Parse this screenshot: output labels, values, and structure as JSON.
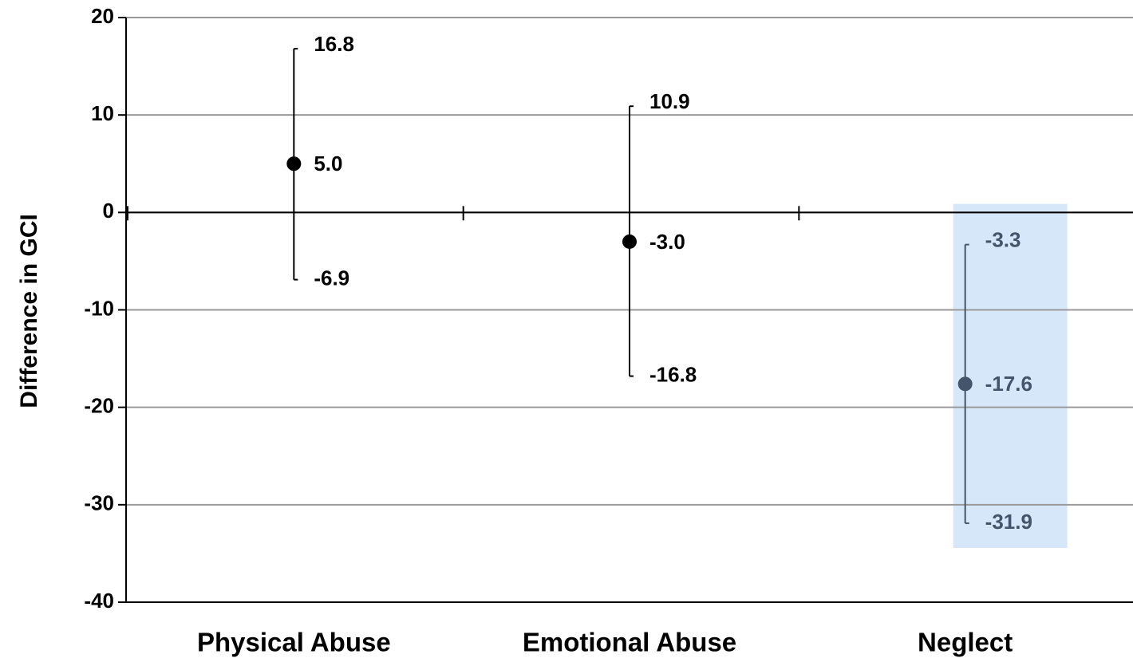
{
  "chart_data": {
    "type": "errorbar",
    "y_label": "Difference in GCI",
    "categories": [
      "Physical Abuse",
      "Emotional Abuse",
      "Neglect"
    ],
    "values": [
      5.0,
      -3.0,
      -17.6
    ],
    "value_labels": [
      "5.0",
      "-3.0",
      "-17.6"
    ],
    "upper": [
      16.8,
      10.9,
      -3.3
    ],
    "lower": [
      -6.9,
      -16.8,
      -31.9
    ],
    "colors": [
      "#000000",
      "#000000",
      "#44546a"
    ],
    "highlight": [
      false,
      false,
      true
    ],
    "highlight_color": "#d6e7fa",
    "ylim": [
      -40,
      20
    ],
    "yticks": [
      -40,
      -30,
      -20,
      -10,
      0,
      10,
      20
    ],
    "grid": true
  }
}
